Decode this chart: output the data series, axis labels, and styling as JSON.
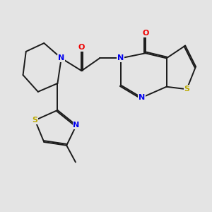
{
  "background_color": "#e4e4e4",
  "bond_color": "#1a1a1a",
  "atom_colors": {
    "N": "#0000ee",
    "O": "#ee0000",
    "S": "#bbaa00",
    "C": "#1a1a1a"
  },
  "figsize": [
    3.0,
    3.0
  ],
  "dpi": 100
}
